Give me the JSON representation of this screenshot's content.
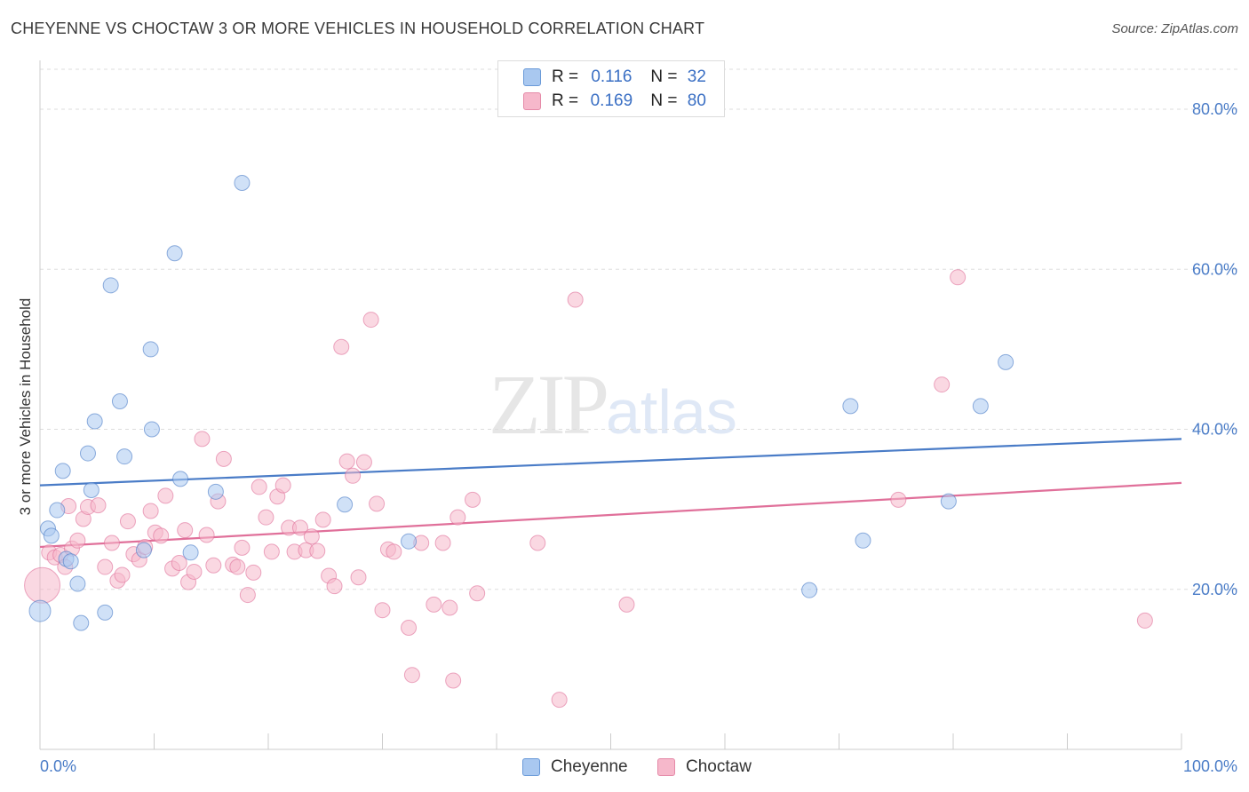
{
  "header": {
    "title": "CHEYENNE VS CHOCTAW 3 OR MORE VEHICLES IN HOUSEHOLD CORRELATION CHART",
    "source": "Source: ZipAtlas.com"
  },
  "legend_top": {
    "rows": [
      {
        "r_label": "R =",
        "r_value": "0.116",
        "n_label": "N =",
        "n_value": "32",
        "color": "#a9c8f0"
      },
      {
        "r_label": "R =",
        "r_value": "0.169",
        "n_label": "N =",
        "n_value": "80",
        "color": "#f6b8cb"
      }
    ]
  },
  "legend_bottom": {
    "items": [
      {
        "label": "Cheyenne",
        "color": "#a9c8f0"
      },
      {
        "label": "Choctaw",
        "color": "#f6b8cb"
      }
    ]
  },
  "watermark": {
    "zip": "ZIP",
    "atlas": "atlas"
  },
  "chart_data": {
    "type": "scatter",
    "title": "CHEYENNE VS CHOCTAW 3 OR MORE VEHICLES IN HOUSEHOLD CORRELATION CHART",
    "xlabel": "",
    "ylabel": "3 or more Vehicles in Household",
    "xlim": [
      0,
      100
    ],
    "ylim": [
      0,
      85
    ],
    "x_tick_labels": [
      "0.0%",
      "100.0%"
    ],
    "y_ticks": [
      20,
      40,
      60,
      80
    ],
    "y_tick_labels": [
      "20.0%",
      "40.0%",
      "60.0%",
      "80.0%"
    ],
    "grid": true,
    "legend_position": "top-center",
    "series": [
      {
        "name": "Cheyenne",
        "color": "#4a7cc7",
        "fill": "#a9c8f0",
        "points": [
          [
            0.0,
            17.3
          ],
          [
            0.7,
            27.6
          ],
          [
            1.0,
            26.7
          ],
          [
            1.5,
            29.9
          ],
          [
            2.0,
            34.8
          ],
          [
            2.3,
            23.8
          ],
          [
            2.7,
            23.5
          ],
          [
            3.3,
            20.7
          ],
          [
            3.6,
            15.8
          ],
          [
            4.2,
            37.0
          ],
          [
            4.5,
            32.4
          ],
          [
            4.8,
            41.0
          ],
          [
            5.7,
            17.1
          ],
          [
            6.2,
            58.0
          ],
          [
            7.0,
            43.5
          ],
          [
            7.4,
            36.6
          ],
          [
            9.1,
            24.9
          ],
          [
            9.7,
            50.0
          ],
          [
            9.8,
            40.0
          ],
          [
            11.8,
            62.0
          ],
          [
            12.3,
            33.8
          ],
          [
            13.2,
            24.6
          ],
          [
            15.4,
            32.2
          ],
          [
            17.7,
            70.8
          ],
          [
            26.7,
            30.6
          ],
          [
            32.3,
            26.0
          ],
          [
            67.4,
            19.9
          ],
          [
            71.0,
            42.9
          ],
          [
            72.1,
            26.1
          ],
          [
            79.6,
            31.0
          ],
          [
            82.4,
            42.9
          ],
          [
            84.6,
            48.4
          ]
        ],
        "trend": {
          "x": [
            0,
            100
          ],
          "y": [
            33.0,
            38.8
          ]
        }
      },
      {
        "name": "Choctaw",
        "color": "#e0709a",
        "fill": "#f6b8cb",
        "points": [
          [
            0.2,
            20.5
          ],
          [
            0.8,
            24.6
          ],
          [
            1.3,
            24.0
          ],
          [
            1.8,
            24.3
          ],
          [
            2.2,
            22.8
          ],
          [
            2.5,
            30.4
          ],
          [
            2.8,
            25.1
          ],
          [
            3.3,
            26.1
          ],
          [
            3.8,
            28.8
          ],
          [
            4.2,
            30.3
          ],
          [
            5.1,
            30.5
          ],
          [
            5.7,
            22.8
          ],
          [
            6.3,
            25.8
          ],
          [
            6.8,
            21.1
          ],
          [
            7.2,
            21.8
          ],
          [
            7.7,
            28.5
          ],
          [
            8.2,
            24.4
          ],
          [
            8.7,
            23.7
          ],
          [
            9.2,
            25.3
          ],
          [
            9.7,
            29.8
          ],
          [
            10.1,
            27.1
          ],
          [
            10.6,
            26.7
          ],
          [
            11.0,
            31.7
          ],
          [
            11.6,
            22.6
          ],
          [
            12.2,
            23.3
          ],
          [
            12.7,
            27.4
          ],
          [
            13.0,
            20.9
          ],
          [
            13.5,
            22.2
          ],
          [
            14.2,
            38.8
          ],
          [
            14.6,
            26.8
          ],
          [
            15.2,
            23.0
          ],
          [
            15.6,
            31.0
          ],
          [
            16.1,
            36.3
          ],
          [
            16.9,
            23.1
          ],
          [
            17.3,
            22.8
          ],
          [
            17.7,
            25.2
          ],
          [
            18.2,
            19.3
          ],
          [
            18.7,
            22.1
          ],
          [
            19.2,
            32.8
          ],
          [
            19.8,
            29.0
          ],
          [
            20.3,
            24.7
          ],
          [
            20.8,
            31.6
          ],
          [
            21.3,
            33.0
          ],
          [
            21.8,
            27.7
          ],
          [
            22.3,
            24.7
          ],
          [
            22.8,
            27.7
          ],
          [
            23.3,
            24.9
          ],
          [
            23.8,
            26.6
          ],
          [
            24.3,
            24.8
          ],
          [
            24.8,
            28.7
          ],
          [
            25.3,
            21.7
          ],
          [
            25.8,
            20.4
          ],
          [
            26.4,
            50.3
          ],
          [
            26.9,
            36.0
          ],
          [
            27.4,
            34.2
          ],
          [
            27.9,
            21.5
          ],
          [
            28.4,
            35.9
          ],
          [
            29.0,
            53.7
          ],
          [
            29.5,
            30.7
          ],
          [
            30.0,
            17.4
          ],
          [
            30.5,
            25.0
          ],
          [
            31.0,
            24.7
          ],
          [
            32.3,
            15.2
          ],
          [
            32.6,
            9.3
          ],
          [
            33.4,
            25.8
          ],
          [
            34.5,
            18.1
          ],
          [
            35.3,
            25.8
          ],
          [
            35.9,
            17.7
          ],
          [
            36.2,
            8.6
          ],
          [
            36.6,
            29.0
          ],
          [
            37.9,
            31.2
          ],
          [
            38.3,
            19.5
          ],
          [
            43.6,
            25.8
          ],
          [
            45.5,
            6.2
          ],
          [
            46.9,
            56.2
          ],
          [
            51.4,
            18.1
          ],
          [
            75.2,
            31.2
          ],
          [
            79.0,
            45.6
          ],
          [
            80.4,
            59.0
          ],
          [
            96.8,
            16.1
          ]
        ],
        "trend": {
          "x": [
            0,
            100
          ],
          "y": [
            25.3,
            33.3
          ]
        }
      }
    ]
  }
}
